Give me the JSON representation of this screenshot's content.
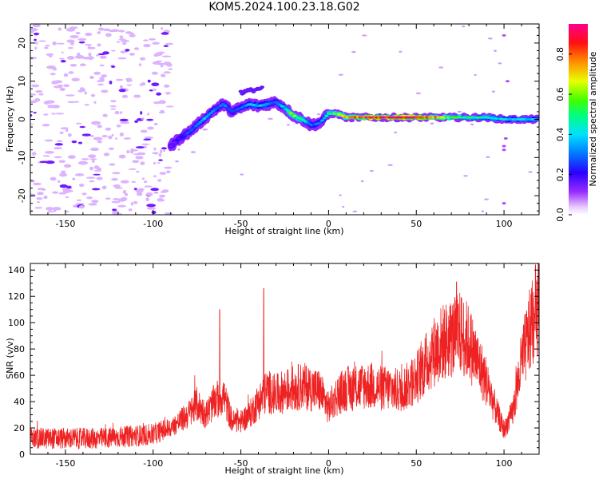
{
  "title": "KOM5.2024.100.23.18.G02",
  "colors": {
    "snr_line": "#ee2222",
    "background": "#ffffff",
    "axis": "#000000",
    "colormap": [
      "#ffffff",
      "#d8a8ff",
      "#9a2cff",
      "#3a00ff",
      "#0066ff",
      "#00c8ff",
      "#00ff66",
      "#a0ff00",
      "#ffff00",
      "#ff9900",
      "#ff2200",
      "#ff00aa"
    ]
  },
  "chart_data": [
    {
      "type": "heatmap",
      "xlabel": "Height of straight line (km)",
      "ylabel": "Frequency (Hz)",
      "xlim": [
        -170,
        120
      ],
      "ylim": [
        -25,
        25
      ],
      "xticks": [
        -150,
        -100,
        -50,
        0,
        50,
        100
      ],
      "xticks_labels": [
        "-150",
        "-100",
        "-50",
        "0",
        "50",
        "100"
      ],
      "yticks": [
        -20,
        -10,
        0,
        10,
        20
      ],
      "yticks_labels": [
        "-20",
        "-10",
        "0",
        "10",
        "20"
      ],
      "grid": false,
      "colorbar": {
        "label": "Normalized spectral amplitude",
        "range": [
          0,
          0.95
        ],
        "ticks": [
          0.0,
          0.2,
          0.4,
          0.6,
          0.8
        ],
        "ticks_labels": [
          "0.0",
          "0.2",
          "0.4",
          "0.6",
          "0.8"
        ]
      },
      "ridge": {
        "x": [
          -90,
          -85,
          -80,
          -75,
          -70,
          -65,
          -60,
          -55,
          -50,
          -45,
          -40,
          -35,
          -30,
          -25,
          -20,
          -15,
          -10,
          -5,
          0,
          5,
          10,
          20,
          30,
          40,
          50,
          60,
          70,
          80,
          90,
          100,
          110,
          120
        ],
        "freq": [
          -7,
          -5,
          -3.5,
          -1.5,
          0.5,
          2.5,
          4,
          2,
          3,
          4,
          3.5,
          4,
          4.5,
          3,
          1,
          0,
          -1.5,
          -1,
          1.5,
          1.5,
          0.5,
          0.5,
          0.5,
          0.5,
          0.5,
          0.5,
          0.5,
          0.5,
          0.5,
          0,
          0,
          0
        ],
        "amplitude": [
          0.15,
          0.2,
          0.25,
          0.3,
          0.35,
          0.3,
          0.3,
          0.25,
          0.3,
          0.35,
          0.4,
          0.35,
          0.3,
          0.4,
          0.6,
          0.5,
          0.3,
          0.3,
          0.5,
          0.6,
          0.75,
          0.85,
          0.9,
          0.9,
          0.85,
          0.75,
          0.55,
          0.5,
          0.45,
          0.4,
          0.4,
          0.35
        ]
      }
    },
    {
      "type": "line",
      "xlabel": "Height of straight line (km)",
      "ylabel": "SNR (v/v)",
      "xlim": [
        -170,
        120
      ],
      "ylim": [
        0,
        145
      ],
      "xticks": [
        -150,
        -100,
        -50,
        0,
        50,
        100
      ],
      "xticks_labels": [
        "-150",
        "-100",
        "-50",
        "0",
        "50",
        "100"
      ],
      "yticks": [
        0,
        20,
        40,
        60,
        80,
        100,
        120,
        140
      ],
      "yticks_labels": [
        "0",
        "20",
        "40",
        "60",
        "80",
        "100",
        "120",
        "140"
      ],
      "grid": false,
      "series": [
        {
          "x": [
            -170,
            -160,
            -150,
            -140,
            -130,
            -120,
            -110,
            -100,
            -95,
            -90,
            -85,
            -80,
            -75,
            -70,
            -65,
            -60,
            -55,
            -50,
            -45,
            -40,
            -35,
            -30,
            -25,
            -20,
            -15,
            -10,
            -5,
            0,
            5,
            10,
            15,
            20,
            25,
            30,
            35,
            40,
            45,
            50,
            55,
            60,
            65,
            70,
            75,
            80,
            85,
            90,
            95,
            100,
            105,
            110,
            115,
            120
          ],
          "values": [
            12,
            12,
            12,
            12,
            12,
            13,
            14,
            15,
            18,
            20,
            25,
            30,
            38,
            30,
            40,
            45,
            25,
            25,
            30,
            40,
            48,
            45,
            48,
            50,
            52,
            50,
            48,
            35,
            45,
            50,
            50,
            52,
            52,
            50,
            50,
            48,
            52,
            58,
            68,
            78,
            85,
            88,
            92,
            85,
            70,
            55,
            35,
            18,
            32,
            70,
            95,
            118
          ],
          "peaks": [
            {
              "x": -62,
              "y": 110
            },
            {
              "x": -37,
              "y": 126
            },
            {
              "x": 73,
              "y": 131
            },
            {
              "x": 118,
              "y": 144
            }
          ]
        }
      ]
    }
  ]
}
